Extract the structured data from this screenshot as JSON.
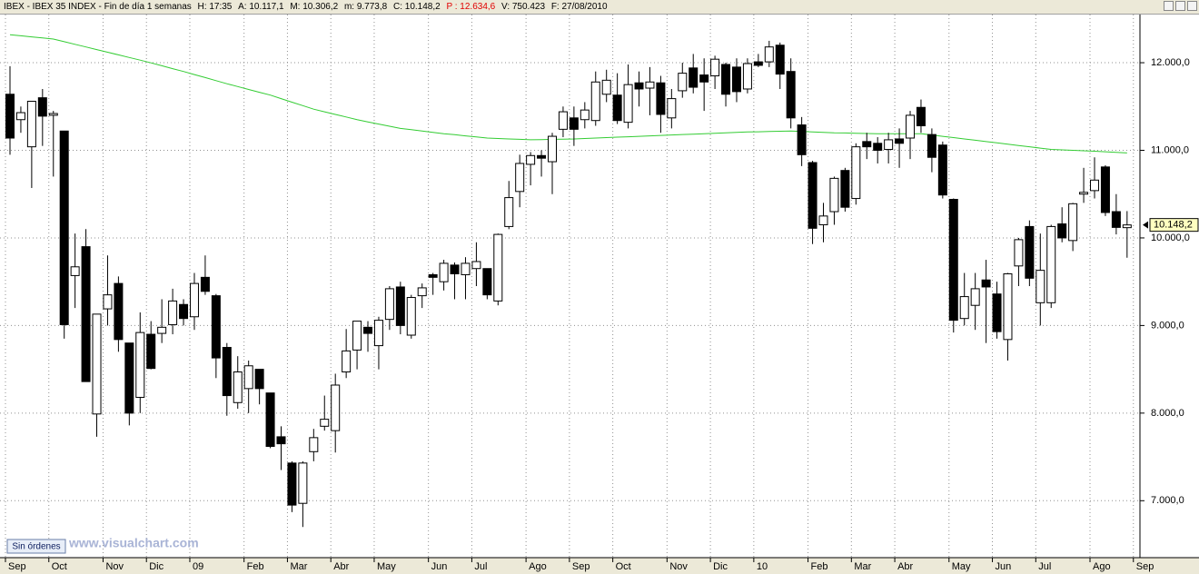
{
  "chart_data": {
    "type": "candlestick",
    "header": [
      "IBEX - IBEX 35 INDEX - Fin de día 1 semanas",
      "H: 17:35",
      "A: 10.117,1",
      "M: 10.306,2",
      "m: 9.773,8",
      "C: 10.148,2",
      "P : 12.634,6",
      "V: 750.423",
      "F: 27/08/2010"
    ],
    "button": "Sin órdenes",
    "watermark": "www.visualchart.com",
    "up_color": "#ffffff",
    "down_color": "#000000",
    "grid": true,
    "categories": [
      "Sep",
      null,
      null,
      null,
      "Oct",
      null,
      null,
      null,
      null,
      "Nov",
      null,
      null,
      null,
      "Dic",
      null,
      null,
      null,
      "09",
      null,
      null,
      null,
      null,
      "Feb",
      null,
      null,
      null,
      "Mar",
      null,
      null,
      null,
      "Abr",
      null,
      null,
      null,
      "May",
      null,
      null,
      null,
      null,
      "Jun",
      null,
      null,
      null,
      "Jul",
      null,
      null,
      null,
      null,
      "Ago",
      null,
      null,
      null,
      "Sep",
      null,
      null,
      null,
      "Oct",
      null,
      null,
      null,
      null,
      "Nov",
      null,
      null,
      null,
      "Dic",
      null,
      null,
      null,
      "10",
      null,
      null,
      null,
      null,
      "Feb",
      null,
      null,
      null,
      "Mar",
      null,
      null,
      null,
      "Abr",
      null,
      null,
      null,
      null,
      "May",
      null,
      null,
      null,
      "Jun",
      null,
      null,
      null,
      "Jul",
      null,
      null,
      null,
      null,
      "Ago",
      null,
      null,
      null,
      "Sep"
    ],
    "open": [
      11640,
      11350,
      11040,
      11600,
      11400,
      11220,
      9570,
      9900,
      7990,
      9190,
      9480,
      8800,
      8180,
      8900,
      8910,
      9010,
      9240,
      9100,
      9550,
      9340,
      8750,
      8120,
      8280,
      8500,
      8230,
      7730,
      7430,
      6970,
      7560,
      7850,
      7800,
      8470,
      8720,
      8980,
      8770,
      9070,
      9440,
      8890,
      9340,
      9580,
      9500,
      9690,
      9580,
      9650,
      9650,
      9280,
      10130,
      10530,
      10840,
      10940,
      10870,
      11240,
      11370,
      11350,
      11340,
      11640,
      11630,
      11320,
      11770,
      11710,
      11770,
      11370,
      11680,
      11940,
      11860,
      11850,
      11980,
      11950,
      11700,
      12010,
      12010,
      12200,
      11900,
      11290,
      10860,
      10150,
      10300,
      10770,
      10450,
      11100,
      11080,
      11010,
      11130,
      11140,
      11490,
      11180,
      11060,
      10440,
      9080,
      9230,
      9520,
      9360,
      8840,
      9680,
      10130,
      9260,
      9260,
      10160,
      9970,
      10500,
      10540,
      10810,
      10300,
      10117.1,
      null
    ],
    "high": [
      11960,
      11500,
      11560,
      11700,
      11450,
      11220,
      10050,
      10100,
      9130,
      9800,
      9560,
      8800,
      9150,
      9050,
      9300,
      9420,
      9300,
      9600,
      9800,
      9360,
      8800,
      8650,
      8600,
      8500,
      8230,
      7850,
      7450,
      7450,
      7820,
      8200,
      8450,
      8960,
      9050,
      9050,
      9100,
      9450,
      9500,
      9350,
      9480,
      9600,
      9750,
      9720,
      9780,
      9950,
      9650,
      10050,
      10650,
      10950,
      10980,
      11000,
      11200,
      11500,
      11500,
      11550,
      11900,
      11920,
      11880,
      11980,
      11900,
      11950,
      11850,
      11700,
      12000,
      12100,
      12050,
      12080,
      12000,
      12050,
      12050,
      12100,
      12250,
      12230,
      12050,
      11380,
      10880,
      10400,
      10700,
      10800,
      11080,
      11200,
      11150,
      11200,
      11250,
      11450,
      11580,
      11250,
      11100,
      10450,
      9600,
      9600,
      9750,
      9500,
      9600,
      10000,
      10200,
      10050,
      10150,
      10350,
      10400,
      10800,
      10920,
      10830,
      10500,
      10306.2,
      null
    ],
    "low": [
      10950,
      11200,
      10570,
      11050,
      10700,
      8850,
      9200,
      8360,
      7730,
      9000,
      8700,
      7860,
      8000,
      8500,
      8800,
      8900,
      9000,
      8950,
      9350,
      8400,
      7970,
      8050,
      8000,
      8100,
      7600,
      7350,
      6870,
      6700,
      7450,
      7800,
      7550,
      8400,
      8500,
      8700,
      8500,
      8950,
      8900,
      8850,
      9200,
      9350,
      9400,
      9300,
      9300,
      9450,
      9300,
      9230,
      10100,
      10350,
      10600,
      10700,
      10500,
      11150,
      11050,
      11250,
      11280,
      11550,
      11300,
      11250,
      11500,
      11400,
      11200,
      11250,
      11600,
      11650,
      11450,
      11700,
      11500,
      11550,
      11650,
      11950,
      11950,
      11700,
      11250,
      10820,
      9930,
      9950,
      10150,
      10300,
      10380,
      10900,
      10850,
      10850,
      10800,
      10900,
      11200,
      10750,
      10450,
      8920,
      9000,
      8950,
      8800,
      8850,
      8600,
      9450,
      9450,
      9000,
      9200,
      9950,
      9850,
      10400,
      10450,
      10250,
      10040,
      9773.8,
      null
    ],
    "close": [
      11140,
      11430,
      11560,
      11390,
      11420,
      9010,
      9670,
      8360,
      9130,
      9350,
      8840,
      8000,
      8920,
      8510,
      8980,
      9280,
      9080,
      9480,
      9390,
      8630,
      8200,
      8470,
      8540,
      8280,
      7620,
      7650,
      6950,
      7430,
      7720,
      7930,
      8320,
      8710,
      9050,
      8910,
      9060,
      9420,
      9000,
      9320,
      9430,
      9550,
      9710,
      9590,
      9710,
      9730,
      9350,
      10040,
      10460,
      10850,
      10940,
      10910,
      11160,
      11440,
      11240,
      11460,
      11780,
      11800,
      11340,
      11750,
      11700,
      11780,
      11410,
      11590,
      11880,
      11720,
      11780,
      12040,
      11640,
      11670,
      11990,
      11970,
      12180,
      11870,
      11370,
      10950,
      10110,
      10250,
      10680,
      10350,
      11040,
      11040,
      11000,
      11120,
      11080,
      11400,
      11280,
      10920,
      10490,
      9060,
      9330,
      9420,
      9440,
      8930,
      9590,
      9980,
      9540,
      9630,
      10130,
      10000,
      10390,
      10520,
      10660,
      10290,
      10120,
      10148.2,
      null
    ],
    "moving_average": {
      "color": "#33cc33",
      "values": [
        12320,
        12307,
        12295,
        12282,
        12270,
        12240,
        12210,
        12180,
        12150,
        12120,
        12090,
        12060,
        12030,
        11998,
        11965,
        11932,
        11900,
        11865,
        11830,
        11795,
        11760,
        11728,
        11695,
        11662,
        11630,
        11590,
        11550,
        11510,
        11470,
        11440,
        11410,
        11380,
        11350,
        11325,
        11300,
        11275,
        11250,
        11235,
        11220,
        11205,
        11190,
        11178,
        11165,
        11152,
        11140,
        11135,
        11130,
        11125,
        11120,
        11122,
        11125,
        11128,
        11130,
        11135,
        11140,
        11145,
        11150,
        11155,
        11160,
        11165,
        11170,
        11175,
        11180,
        11185,
        11190,
        11195,
        11200,
        11205,
        11210,
        11212,
        11215,
        11218,
        11220,
        11215,
        11210,
        11205,
        11200,
        11198,
        11195,
        11192,
        11190,
        11190,
        11190,
        11190,
        11190,
        11175,
        11160,
        11145,
        11130,
        11115,
        11100,
        11085,
        11070,
        11055,
        11040,
        11025,
        11010,
        11005,
        11000,
        10995,
        10990,
        10983,
        10977,
        10970,
        null
      ]
    },
    "last_price": {
      "value": 10148.2,
      "label": "10.148,2"
    },
    "ylim": [
      6350,
      12550
    ],
    "yticks": [
      {
        "value": 7000,
        "label": "7.000,0"
      },
      {
        "value": 8000,
        "label": "8.000,0"
      },
      {
        "value": 9000,
        "label": "9.000,0"
      },
      {
        "value": 10000,
        "label": "10.000,0"
      },
      {
        "value": 11000,
        "label": "11.000,0"
      },
      {
        "value": 12000,
        "label": "12.000,0"
      }
    ]
  }
}
